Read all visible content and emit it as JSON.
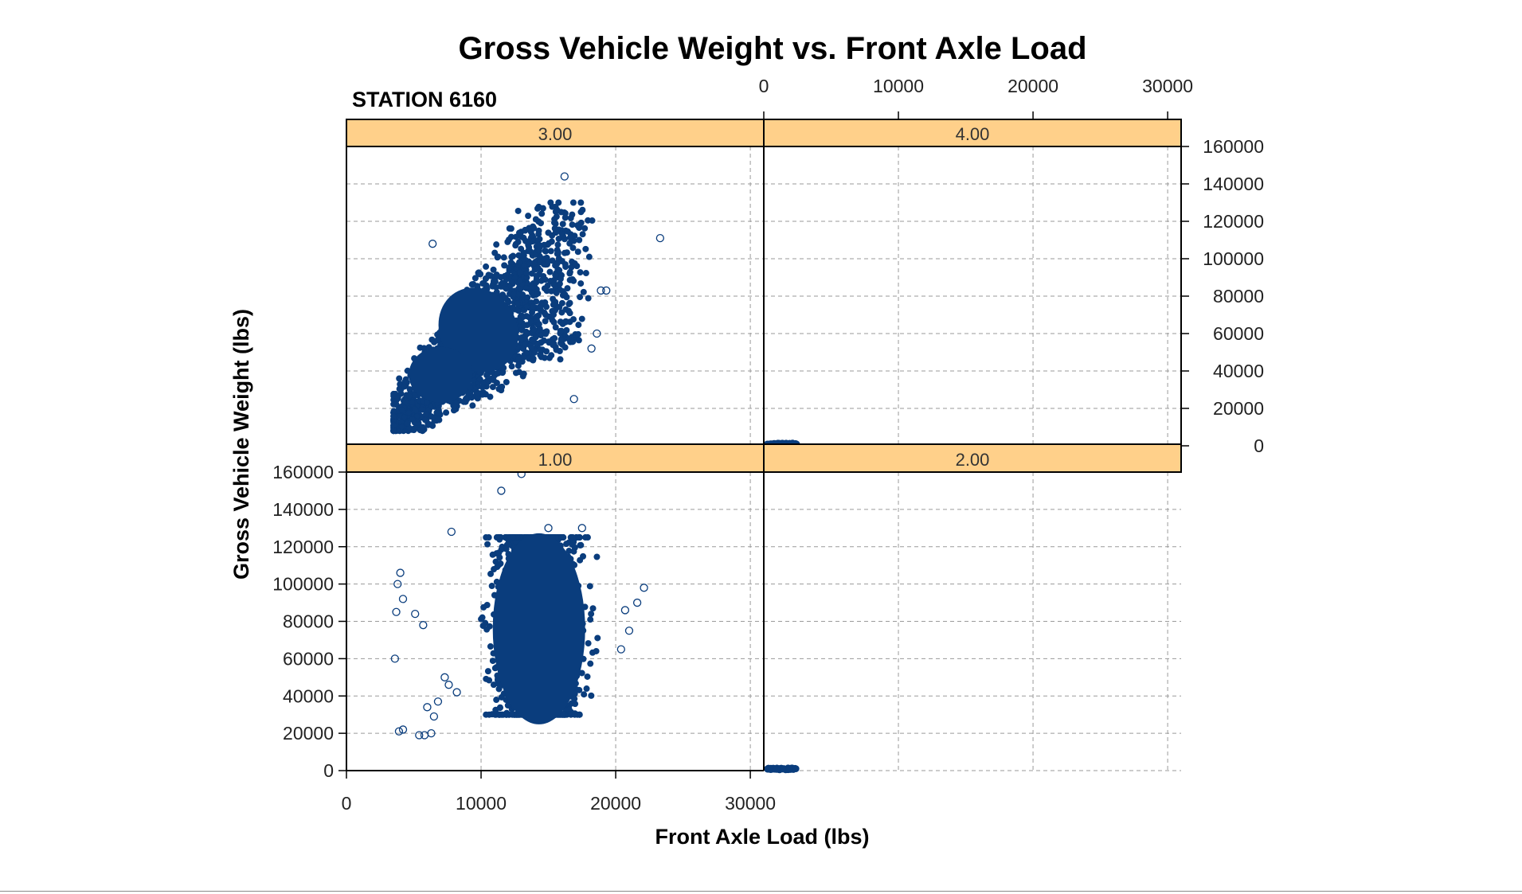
{
  "chart_data": {
    "type": "scatter",
    "title": "Gross Vehicle Weight vs. Front Axle Load",
    "subtitle": "STATION 6160",
    "xlabel": "Front Axle Load (lbs)",
    "ylabel": "Gross Vehicle Weight (lbs)",
    "xlim": [
      0,
      31000
    ],
    "ylim": [
      0,
      160000
    ],
    "x_ticks": [
      "0",
      "10000",
      "20000",
      "30000"
    ],
    "y_ticks": [
      "0",
      "20000",
      "40000",
      "60000",
      "80000",
      "100000",
      "120000",
      "140000",
      "160000"
    ],
    "grid": true,
    "marker": "open-circle",
    "colors": {
      "marker": "#0a3d7d",
      "strip": "#ffd08a",
      "strip_border": "#000000",
      "grid": "#9a9a9a"
    },
    "panels": [
      {
        "label": "3.00",
        "position": "top-left",
        "cloud": {
          "x_range": [
            3500,
            19000
          ],
          "y_range": [
            8000,
            130000
          ],
          "trend": "positive"
        },
        "outliers": [
          [
            16200,
            144000
          ],
          [
            23300,
            111000
          ],
          [
            6400,
            108000
          ],
          [
            18900,
            83000
          ],
          [
            19300,
            83000
          ],
          [
            18600,
            60000
          ],
          [
            18200,
            52000
          ],
          [
            16900,
            25000
          ]
        ]
      },
      {
        "label": "4.00",
        "position": "top-right",
        "cloud": {
          "x_range": [
            0,
            2200
          ],
          "y_range": [
            0,
            1000
          ]
        },
        "outliers": []
      },
      {
        "label": "1.00",
        "position": "bottom-left",
        "cloud": {
          "x_range": [
            10000,
            19500
          ],
          "y_range": [
            30000,
            125000
          ]
        },
        "outliers": [
          [
            13000,
            159000
          ],
          [
            11500,
            150000
          ],
          [
            7800,
            128000
          ],
          [
            15000,
            130000
          ],
          [
            17500,
            130000
          ],
          [
            4000,
            106000
          ],
          [
            3800,
            100000
          ],
          [
            4200,
            92000
          ],
          [
            3700,
            85000
          ],
          [
            5100,
            84000
          ],
          [
            5700,
            78000
          ],
          [
            3600,
            60000
          ],
          [
            4200,
            22000
          ],
          [
            3900,
            21000
          ],
          [
            5400,
            19000
          ],
          [
            5800,
            19000
          ],
          [
            6300,
            20000
          ],
          [
            6500,
            29000
          ],
          [
            6000,
            34000
          ],
          [
            6800,
            37000
          ],
          [
            7300,
            50000
          ],
          [
            7600,
            46000
          ],
          [
            8200,
            42000
          ],
          [
            22100,
            98000
          ],
          [
            21600,
            90000
          ],
          [
            20700,
            86000
          ],
          [
            21000,
            75000
          ],
          [
            20400,
            65000
          ]
        ]
      },
      {
        "label": "2.00",
        "position": "bottom-right",
        "cloud": {
          "x_range": [
            0,
            2200
          ],
          "y_range": [
            0,
            1000
          ]
        },
        "outliers": []
      }
    ]
  }
}
